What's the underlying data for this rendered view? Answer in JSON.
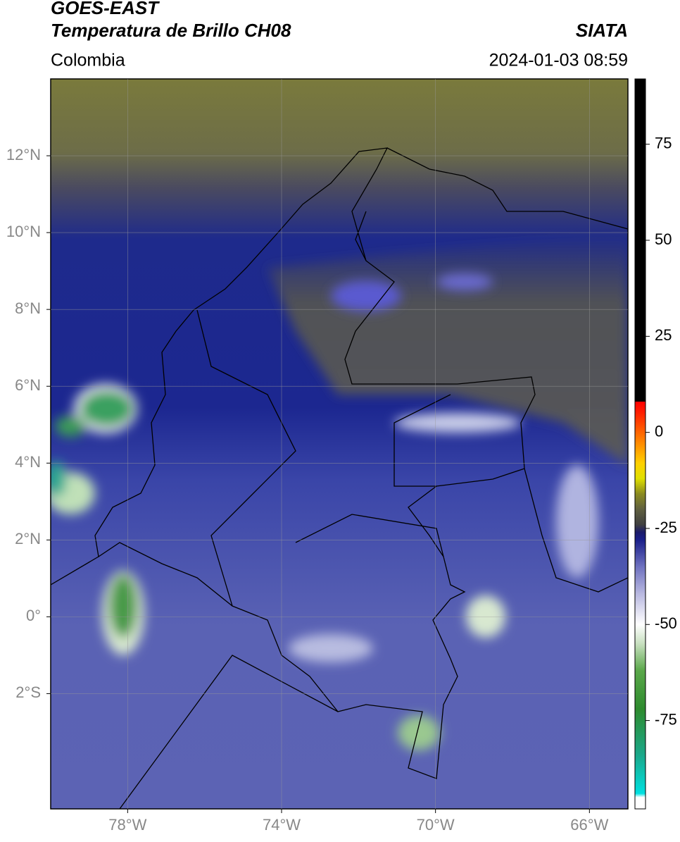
{
  "header": {
    "title": "GOES-EAST",
    "subtitle": "Temperatura de Brillo CH08",
    "source": "SIATA",
    "region": "Colombia",
    "datetime": "2024-01-03 08:59"
  },
  "map": {
    "lonlim": [
      -80,
      -65
    ],
    "latlim": [
      -5,
      14
    ],
    "lonticks": [
      {
        "value": -78,
        "label": "78°W"
      },
      {
        "value": -74,
        "label": "74°W"
      },
      {
        "value": -70,
        "label": "70°W"
      },
      {
        "value": -66,
        "label": "66°W"
      }
    ],
    "latticks": [
      {
        "value": 12,
        "label": "12°N"
      },
      {
        "value": 10,
        "label": "10°N"
      },
      {
        "value": 8,
        "label": "8°N"
      },
      {
        "value": 6,
        "label": "6°N"
      },
      {
        "value": 4,
        "label": "4°N"
      },
      {
        "value": 2,
        "label": "2°N"
      },
      {
        "value": 0,
        "label": "0°"
      },
      {
        "value": -2,
        "label": "2°S"
      }
    ],
    "grid": true
  },
  "colorbar": {
    "lim": [
      -98,
      92
    ],
    "ticks": [
      75,
      50,
      25,
      0,
      -25,
      -50,
      -75
    ],
    "stops": [
      {
        "value": -98,
        "color": "#ffffff"
      },
      {
        "value": -95,
        "color": "#ffffff"
      },
      {
        "value": -94,
        "color": "#00e0e0"
      },
      {
        "value": -84,
        "color": "#1aa88a"
      },
      {
        "value": -72,
        "color": "#2e8b2e"
      },
      {
        "value": -62,
        "color": "#5aa84a"
      },
      {
        "value": -55,
        "color": "#c8e0c0"
      },
      {
        "value": -50,
        "color": "#ffffff"
      },
      {
        "value": -42,
        "color": "#b8b8e0"
      },
      {
        "value": -35,
        "color": "#6f72c0"
      },
      {
        "value": -28,
        "color": "#1a1f8a"
      },
      {
        "value": -26,
        "color": "#1a1a6a"
      },
      {
        "value": -24,
        "color": "#404040"
      },
      {
        "value": -20,
        "color": "#606040"
      },
      {
        "value": -16,
        "color": "#8a8a20"
      },
      {
        "value": -12,
        "color": "#e0e000"
      },
      {
        "value": -8,
        "color": "#ffd000"
      },
      {
        "value": -2,
        "color": "#ff8000"
      },
      {
        "value": 5,
        "color": "#ff2000"
      },
      {
        "value": 8,
        "color": "#ff0000"
      },
      {
        "value": 8,
        "color": "#000000"
      },
      {
        "value": 92,
        "color": "#000000"
      }
    ]
  }
}
